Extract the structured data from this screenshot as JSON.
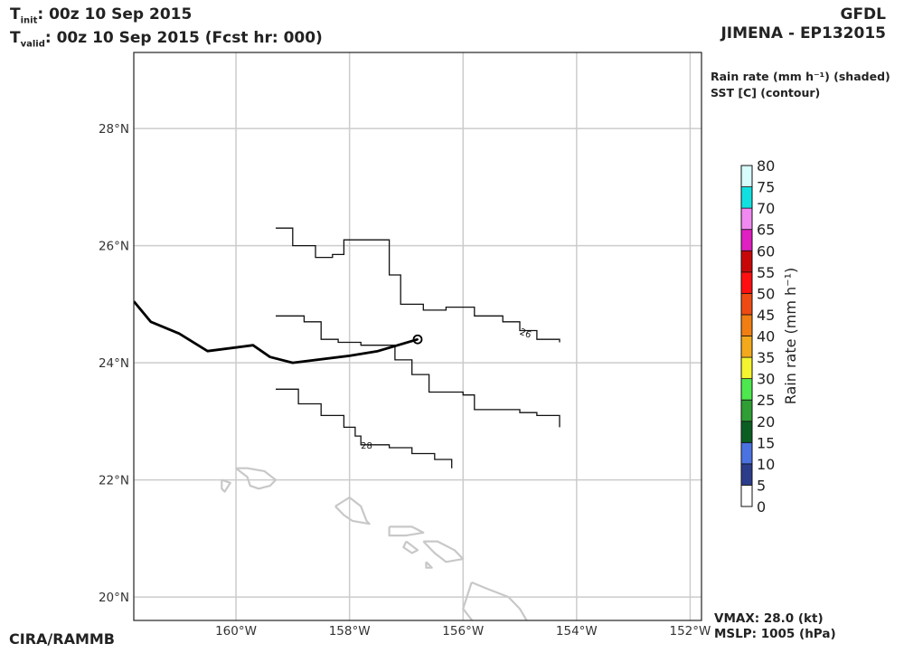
{
  "header": {
    "t_init_label": "T",
    "t_init_sub": "init",
    "t_init_value": ":  00z 10 Sep 2015",
    "t_valid_label": "T",
    "t_valid_sub": "valid",
    "t_valid_value": ": 00z 10 Sep 2015 (Fcst hr: 000)",
    "model": "GFDL",
    "storm": "JIMENA - EP132015"
  },
  "legend": {
    "rain_title": "Rain rate (mm h⁻¹) (shaded)",
    "sst_title": "SST [C] (contour)"
  },
  "footer": {
    "vmax": "VMAX:  28.0 (kt)",
    "mslp": "MSLP: 1005 (hPa)",
    "credit": "CIRA/RAMMB"
  },
  "chart_data": {
    "type": "map",
    "xlim": [
      -161.8,
      -151.8
    ],
    "ylim": [
      19.6,
      29.3
    ],
    "x_ticks": [
      -160,
      -158,
      -156,
      -154,
      -152
    ],
    "x_tick_labels": [
      "160°W",
      "158°W",
      "156°W",
      "154°W",
      "152°W"
    ],
    "y_ticks": [
      20,
      22,
      24,
      26,
      28
    ],
    "y_tick_labels": [
      "20°N",
      "22°N",
      "24°N",
      "26°N",
      "28°N"
    ],
    "grid": true,
    "track": [
      [
        -161.8,
        25.05
      ],
      [
        -161.5,
        24.7
      ],
      [
        -161.0,
        24.5
      ],
      [
        -160.5,
        24.2
      ],
      [
        -159.7,
        24.3
      ],
      [
        -159.4,
        24.1
      ],
      [
        -159.0,
        24.0
      ],
      [
        -158.0,
        24.12
      ],
      [
        -157.5,
        24.2
      ],
      [
        -156.8,
        24.4
      ]
    ],
    "storm_position": [
      -156.8,
      24.4
    ],
    "sst_contours": [
      {
        "label": "26",
        "label_at": [
          -154.9,
          24.5
        ],
        "points": [
          [
            -159.3,
            26.3
          ],
          [
            -159.0,
            26.0
          ],
          [
            -158.6,
            25.8
          ],
          [
            -158.3,
            25.85
          ],
          [
            -158.1,
            26.1
          ],
          [
            -157.7,
            26.1
          ],
          [
            -157.3,
            25.5
          ],
          [
            -157.1,
            25.0
          ],
          [
            -156.7,
            24.9
          ],
          [
            -156.3,
            24.95
          ],
          [
            -156.0,
            24.95
          ],
          [
            -155.8,
            24.8
          ],
          [
            -155.3,
            24.7
          ],
          [
            -155.0,
            24.55
          ],
          [
            -154.7,
            24.4
          ],
          [
            -154.3,
            24.35
          ]
        ]
      },
      {
        "label": "",
        "label_at": null,
        "points": [
          [
            -159.3,
            24.8
          ],
          [
            -158.8,
            24.7
          ],
          [
            -158.5,
            24.4
          ],
          [
            -158.2,
            24.35
          ],
          [
            -157.8,
            24.3
          ],
          [
            -157.2,
            24.05
          ],
          [
            -156.9,
            23.8
          ],
          [
            -156.6,
            23.5
          ],
          [
            -156.0,
            23.45
          ],
          [
            -155.8,
            23.2
          ],
          [
            -155.0,
            23.15
          ],
          [
            -154.7,
            23.1
          ],
          [
            -154.3,
            22.9
          ]
        ]
      },
      {
        "label": "28",
        "label_at": [
          -157.7,
          22.58
        ],
        "points": [
          [
            -159.3,
            23.55
          ],
          [
            -158.9,
            23.3
          ],
          [
            -158.5,
            23.1
          ],
          [
            -158.1,
            22.9
          ],
          [
            -157.9,
            22.75
          ],
          [
            -157.8,
            22.6
          ],
          [
            -157.3,
            22.55
          ],
          [
            -156.9,
            22.45
          ],
          [
            -156.5,
            22.35
          ],
          [
            -156.2,
            22.2
          ]
        ]
      }
    ],
    "coastlines": [
      [
        [
          -160.0,
          22.2
        ],
        [
          -159.8,
          22.2
        ],
        [
          -159.5,
          22.15
        ],
        [
          -159.3,
          22.0
        ],
        [
          -159.4,
          21.9
        ],
        [
          -159.6,
          21.85
        ],
        [
          -159.75,
          21.9
        ],
        [
          -159.8,
          22.05
        ],
        [
          -160.0,
          22.2
        ]
      ],
      [
        [
          -160.25,
          22.0
        ],
        [
          -160.1,
          21.95
        ],
        [
          -160.2,
          21.8
        ],
        [
          -160.25,
          21.85
        ],
        [
          -160.25,
          22.0
        ]
      ],
      [
        [
          -158.25,
          21.55
        ],
        [
          -158.0,
          21.7
        ],
        [
          -157.8,
          21.55
        ],
        [
          -157.7,
          21.3
        ],
        [
          -157.65,
          21.25
        ],
        [
          -157.95,
          21.3
        ],
        [
          -158.1,
          21.4
        ],
        [
          -158.25,
          21.55
        ]
      ],
      [
        [
          -157.3,
          21.2
        ],
        [
          -156.9,
          21.2
        ],
        [
          -156.7,
          21.1
        ],
        [
          -157.0,
          21.05
        ],
        [
          -157.3,
          21.05
        ],
        [
          -157.3,
          21.2
        ]
      ],
      [
        [
          -157.0,
          20.95
        ],
        [
          -156.8,
          20.8
        ],
        [
          -156.9,
          20.75
        ],
        [
          -157.05,
          20.85
        ],
        [
          -157.0,
          20.95
        ]
      ],
      [
        [
          -156.7,
          20.95
        ],
        [
          -156.45,
          20.95
        ],
        [
          -156.15,
          20.8
        ],
        [
          -156.0,
          20.65
        ],
        [
          -156.3,
          20.6
        ],
        [
          -156.5,
          20.75
        ],
        [
          -156.7,
          20.95
        ]
      ],
      [
        [
          -156.65,
          20.6
        ],
        [
          -156.55,
          20.5
        ],
        [
          -156.65,
          20.5
        ],
        [
          -156.65,
          20.6
        ]
      ],
      [
        [
          -155.85,
          20.25
        ],
        [
          -155.6,
          20.15
        ],
        [
          -155.2,
          20.0
        ],
        [
          -155.0,
          19.8
        ],
        [
          -154.85,
          19.55
        ],
        [
          -155.4,
          19.55
        ],
        [
          -155.8,
          19.55
        ],
        [
          -156.0,
          19.8
        ],
        [
          -155.85,
          20.25
        ]
      ]
    ],
    "colorbar": {
      "label": "Rain rate (mm h⁻¹)",
      "ticks": [
        "0",
        "5",
        "10",
        "15",
        "20",
        "25",
        "30",
        "35",
        "40",
        "45",
        "50",
        "55",
        "60",
        "65",
        "70",
        "75",
        "80"
      ],
      "colors": [
        "#ffffff",
        "#2b3d8a",
        "#4a72e0",
        "#0b5e22",
        "#2e9e35",
        "#4de84d",
        "#f4f430",
        "#f2a91c",
        "#f07e12",
        "#ee4a12",
        "#ff0f0f",
        "#c80808",
        "#e020c0",
        "#f089f0",
        "#12e0e0",
        "#d6fcfc"
      ]
    }
  }
}
